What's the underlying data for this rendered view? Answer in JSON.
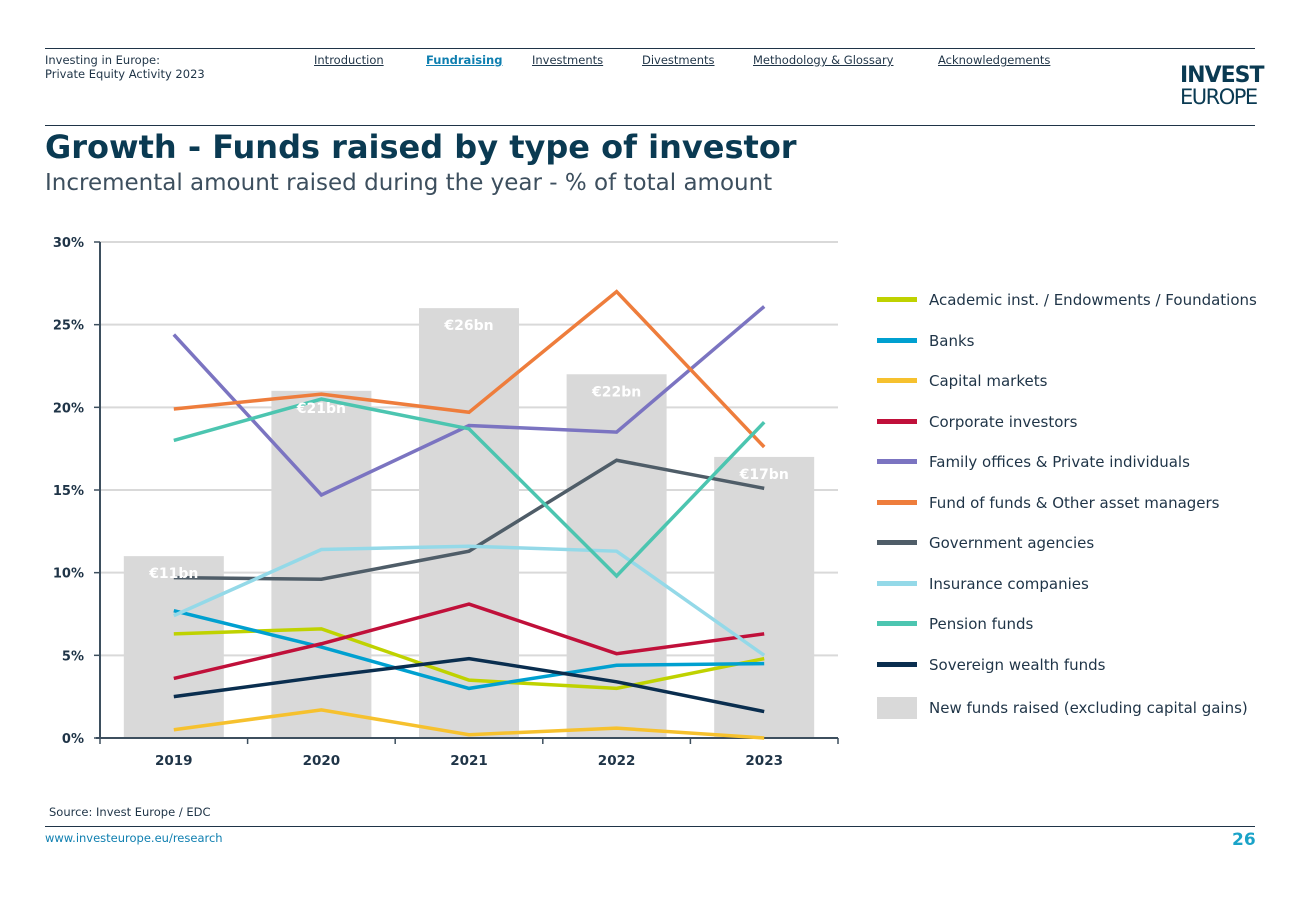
{
  "header": {
    "doc_title_line1": "Investing in Europe:",
    "doc_title_line2": "Private Equity Activity 2023",
    "nav": [
      {
        "label": "Introduction",
        "active": false
      },
      {
        "label": "Fundraising",
        "active": true
      },
      {
        "label": "Investments",
        "active": false
      },
      {
        "label": "Divestments",
        "active": false
      },
      {
        "label": "Methodology & Glossary",
        "active": false
      },
      {
        "label": "Acknowledgements",
        "active": false
      }
    ],
    "logo_line1": "INVEST",
    "logo_line2": "EUROPE"
  },
  "page": {
    "title": "Growth - Funds raised by type of investor",
    "subtitle": "Incremental amount raised during the year - % of total amount"
  },
  "chart_data": {
    "type": "line",
    "title": "Growth - Funds raised by type of investor",
    "subtitle": "Incremental amount raised during the year - % of total amount",
    "categories": [
      "2019",
      "2020",
      "2021",
      "2022",
      "2023"
    ],
    "ylim": [
      0,
      30
    ],
    "yticks": [
      0,
      5,
      10,
      15,
      20,
      25,
      30
    ],
    "ytick_labels": [
      "0%",
      "5%",
      "10%",
      "15%",
      "20%",
      "25%",
      "30%"
    ],
    "grid": true,
    "legend_position": "right",
    "bars": {
      "name": "New funds raised (excluding capital gains)",
      "values": [
        11,
        21,
        26,
        22,
        17
      ],
      "labels": [
        "€11bn",
        "€21bn",
        "€26bn",
        "€22bn",
        "€17bn"
      ],
      "color": "#d9d9d9"
    },
    "series": [
      {
        "name": "Academic inst. / Endowments / Foundations",
        "color": "#bfd200",
        "values": [
          6.3,
          6.6,
          3.5,
          3.0,
          4.8
        ]
      },
      {
        "name": "Banks",
        "color": "#00a0d0",
        "values": [
          7.7,
          5.5,
          3.0,
          4.4,
          4.5
        ]
      },
      {
        "name": "Capital markets",
        "color": "#f6c12e",
        "values": [
          0.5,
          1.7,
          0.2,
          0.6,
          0.0
        ]
      },
      {
        "name": "Corporate investors",
        "color": "#c0103a",
        "values": [
          3.6,
          5.7,
          8.1,
          5.1,
          6.3
        ]
      },
      {
        "name": "Family offices & Private individuals",
        "color": "#7b74c1",
        "values": [
          24.4,
          14.7,
          18.9,
          18.5,
          26.1
        ]
      },
      {
        "name": "Fund of funds & Other asset managers",
        "color": "#ee7d3c",
        "values": [
          19.9,
          20.8,
          19.7,
          27.0,
          17.6
        ]
      },
      {
        "name": "Government agencies",
        "color": "#4f5d68",
        "values": [
          9.7,
          9.6,
          11.3,
          16.8,
          15.1
        ]
      },
      {
        "name": "Insurance companies",
        "color": "#94d9e8",
        "values": [
          7.4,
          11.4,
          11.6,
          11.3,
          5.0
        ]
      },
      {
        "name": "Pension funds",
        "color": "#4cc5b0",
        "values": [
          18.0,
          20.5,
          18.7,
          9.8,
          19.1
        ]
      },
      {
        "name": "Sovereign wealth funds",
        "color": "#0a2e4f",
        "values": [
          2.5,
          3.7,
          4.8,
          3.4,
          1.6
        ]
      }
    ]
  },
  "footer": {
    "source": "Source: Invest Europe / EDC",
    "url": "www.investeurope.eu/research",
    "page_number": "26"
  }
}
